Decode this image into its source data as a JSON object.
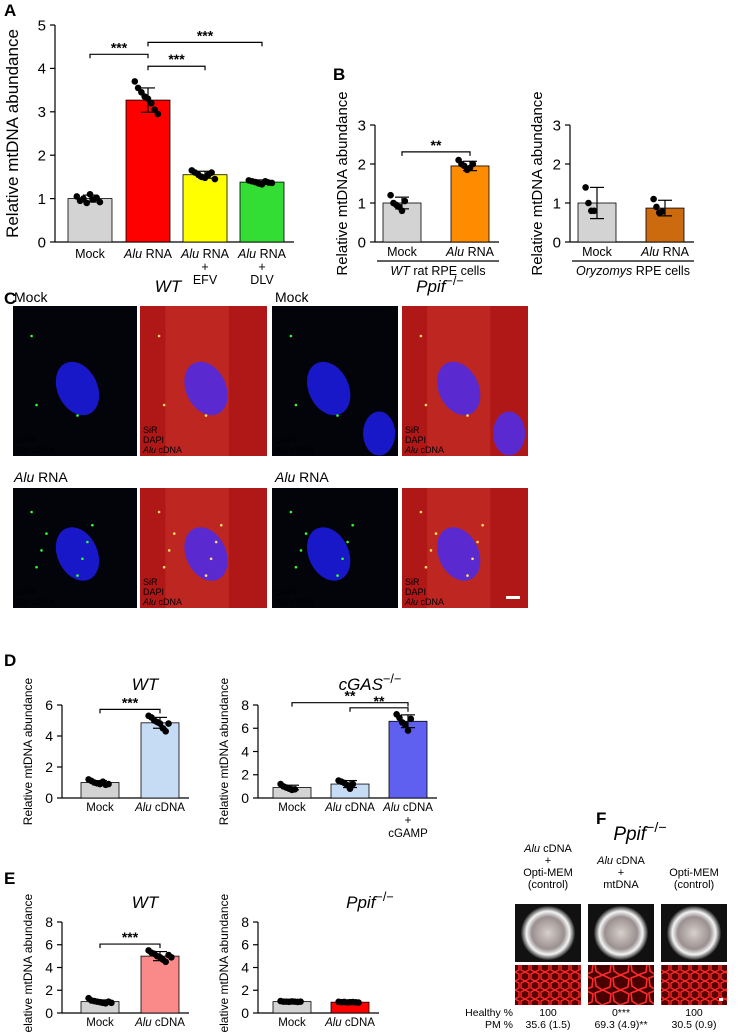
{
  "panel_labels": [
    "A",
    "B",
    "C",
    "D",
    "E",
    "F"
  ],
  "chart_data": [
    {
      "type": "bar",
      "ylabel": "Relative mtDNA abundance",
      "categories": [
        [
          "Mock"
        ],
        [
          "Alu RNA"
        ],
        [
          "Alu RNA",
          "+",
          "EFV"
        ],
        [
          "Alu RNA",
          "+",
          "DLV"
        ]
      ],
      "values": [
        1.0,
        3.27,
        1.55,
        1.38
      ],
      "errors": [
        0.08,
        0.28,
        0.08,
        0.05
      ],
      "points": [
        [
          1.05,
          0.95,
          1.0,
          0.9,
          1.1,
          0.98,
          1.02,
          0.92
        ],
        [
          3.7,
          3.55,
          3.45,
          3.35,
          3.3,
          3.2,
          3.05,
          2.95
        ],
        [
          1.65,
          1.6,
          1.55,
          1.5,
          1.48,
          1.55,
          1.6,
          1.45
        ],
        [
          1.42,
          1.4,
          1.38,
          1.35,
          1.33,
          1.4,
          1.37,
          1.36
        ]
      ],
      "colors": [
        "#d3d3d3",
        "#ff0000",
        "#ffff00",
        "#33dd33"
      ],
      "ylim": [
        0,
        5
      ],
      "yticks": [
        0,
        1,
        2,
        3,
        4,
        5
      ],
      "comparisons": [
        {
          "label": "***",
          "between": [
            1,
            2
          ]
        },
        {
          "label": "***",
          "between": [
            0,
            1
          ]
        },
        {
          "label": "***",
          "between": [
            1,
            3
          ]
        }
      ]
    },
    {
      "type": "bar",
      "ylabel": "Relative mtDNA abundance",
      "xlabel": "WT rat RPE cells",
      "categories": [
        [
          "Mock"
        ],
        [
          "Alu RNA"
        ]
      ],
      "values": [
        1.0,
        1.95
      ],
      "errors": [
        0.15,
        0.12
      ],
      "points": [
        [
          1.2,
          1.0,
          0.95,
          0.9,
          0.8,
          1.05
        ],
        [
          2.1,
          2.0,
          1.95,
          1.85,
          1.9,
          2.0
        ]
      ],
      "colors": [
        "#d3d3d3",
        "#ff8c00"
      ],
      "ylim": [
        0,
        3
      ],
      "yticks": [
        0,
        1,
        2,
        3
      ],
      "comparisons": [
        {
          "label": "**",
          "between": [
            0,
            1
          ]
        }
      ]
    },
    {
      "type": "bar",
      "ylabel": "Relative mtDNA abundance",
      "xlabel": "Oryzomys RPE cells",
      "categories": [
        [
          "Mock"
        ],
        [
          "Alu RNA"
        ]
      ],
      "values": [
        1.0,
        0.87
      ],
      "errors": [
        0.4,
        0.2
      ],
      "points": [
        [
          1.4,
          1.0,
          0.8,
          0.8
        ],
        [
          1.1,
          0.9,
          0.75,
          0.78
        ]
      ],
      "colors": [
        "#d3d3d3",
        "#cc6a10"
      ],
      "ylim": [
        0,
        3
      ],
      "yticks": [
        0,
        1,
        2,
        3
      ],
      "comparisons": []
    },
    {
      "type": "bar",
      "title": "WT",
      "ylabel": "Relative mtDNA abundance",
      "categories": [
        [
          "Mock"
        ],
        [
          "Alu cDNA"
        ]
      ],
      "values": [
        1.0,
        4.85
      ],
      "errors": [
        0.12,
        0.35
      ],
      "points": [
        [
          1.2,
          1.1,
          1.0,
          0.95,
          0.9,
          1.05,
          0.85,
          0.9
        ],
        [
          5.3,
          5.2,
          5.0,
          4.9,
          4.8,
          4.5,
          4.3,
          4.8
        ]
      ],
      "colors": [
        "#d3d3d3",
        "#c6dcf5"
      ],
      "ylim": [
        0,
        6
      ],
      "yticks": [
        0,
        2,
        4,
        6
      ],
      "comparisons": [
        {
          "label": "***",
          "between": [
            0,
            1
          ]
        }
      ]
    },
    {
      "type": "bar",
      "title": "cGAS−/−",
      "ylabel": "Relative mtDNA abundance",
      "categories": [
        [
          "Mock"
        ],
        [
          "Alu cDNA"
        ],
        [
          "Alu cDNA",
          "+",
          "cGAMP"
        ]
      ],
      "values": [
        0.9,
        1.2,
        6.6
      ],
      "errors": [
        0.2,
        0.3,
        0.55
      ],
      "points": [
        [
          1.2,
          1.0,
          0.9,
          0.8,
          0.7,
          0.75
        ],
        [
          1.5,
          1.4,
          1.3,
          1.1,
          0.8,
          1.2
        ],
        [
          7.2,
          6.9,
          6.5,
          6.3,
          5.8,
          6.8
        ]
      ],
      "colors": [
        "#d3d3d3",
        "#c6dcf5",
        "#6060f0"
      ],
      "ylim": [
        0,
        8
      ],
      "yticks": [
        0,
        2,
        4,
        6,
        8
      ],
      "comparisons": [
        {
          "label": "**",
          "between": [
            1,
            2
          ]
        },
        {
          "label": "**",
          "between": [
            0,
            2
          ]
        }
      ]
    },
    {
      "type": "bar",
      "title": "WT",
      "ylabel": "Relative mtDNA abundance",
      "categories": [
        [
          "Mock"
        ],
        [
          "Alu cDNA"
        ]
      ],
      "values": [
        1.0,
        5.0
      ],
      "errors": [
        0.15,
        0.4
      ],
      "points": [
        [
          1.3,
          1.1,
          1.05,
          1.0,
          0.95,
          0.9,
          0.85,
          1.0,
          0.9
        ],
        [
          5.5,
          5.3,
          5.2,
          5.0,
          4.9,
          4.7,
          4.5,
          5.1,
          4.9
        ]
      ],
      "colors": [
        "#d3d3d3",
        "#fa8a8a"
      ],
      "ylim": [
        0,
        8
      ],
      "yticks": [
        0,
        2,
        4,
        6,
        8
      ],
      "comparisons": [
        {
          "label": "***",
          "between": [
            0,
            1
          ]
        }
      ]
    },
    {
      "type": "bar",
      "title": "Ppif−/−",
      "ylabel": "Relative mtDNA abundance",
      "categories": [
        [
          "Mock"
        ],
        [
          "Alu cDNA"
        ]
      ],
      "values": [
        1.0,
        0.95
      ],
      "errors": [
        0.05,
        0.05
      ],
      "points": [
        [
          1.05,
          1.0,
          1.0,
          0.98,
          1.02,
          1.0,
          0.97,
          1.0
        ],
        [
          0.98,
          0.95,
          0.97,
          0.93,
          0.95,
          0.96,
          0.94,
          0.92
        ]
      ],
      "colors": [
        "#d3d3d3",
        "#ff0000"
      ],
      "ylim": [
        0,
        8
      ],
      "yticks": [
        0,
        2,
        4,
        6,
        8
      ],
      "comparisons": []
    }
  ],
  "microscopy": {
    "columns": [
      "WT",
      "Ppif−/−"
    ],
    "rows": [
      "Mock",
      "Alu RNA"
    ],
    "dapi": "DAPI",
    "cdna": "Alu cDNA",
    "sir": "SiR"
  },
  "flatmount": {
    "title": "Ppif−/−",
    "row_labels": [
      "Healthy %",
      "PM %"
    ],
    "columns": [
      {
        "header": [
          "Alu cDNA",
          "+",
          "Opti-MEM",
          "(control)"
        ],
        "healthy": "100",
        "pm": "35.6 (1.5)"
      },
      {
        "header": [
          "Alu cDNA",
          "+",
          "mtDNA"
        ],
        "healthy": "0***",
        "pm": "69.3 (4.9)**"
      },
      {
        "header": [
          "Opti-MEM",
          "(control)"
        ],
        "healthy": "100",
        "pm": "30.5 (0.9)"
      }
    ]
  }
}
